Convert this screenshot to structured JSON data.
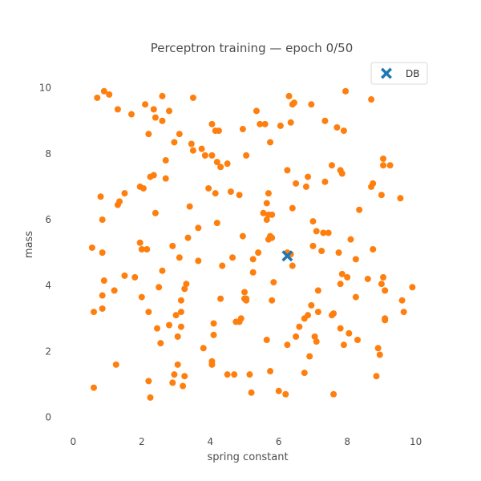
{
  "chart_data": {
    "type": "scatter",
    "title": "Perceptron training — epoch 0/50",
    "xlabel": "spring constant",
    "ylabel": "mass",
    "xlim": [
      -0.5,
      10.5
    ],
    "ylim": [
      -0.4,
      10.6
    ],
    "xticks": [
      0,
      2,
      4,
      6,
      8,
      10
    ],
    "yticks": [
      0,
      2,
      4,
      6,
      8,
      10
    ],
    "grid": false,
    "legend_position": "top-right",
    "series": [
      {
        "marker": "circle",
        "color": "#ff7f0e",
        "points": [
          [
            0.7,
            9.7
          ],
          [
            0.9,
            9.9
          ],
          [
            1.05,
            9.8
          ],
          [
            1.3,
            9.35
          ],
          [
            1.7,
            9.2
          ],
          [
            2.1,
            9.5
          ],
          [
            2.35,
            9.35
          ],
          [
            2.4,
            9.1
          ],
          [
            2.6,
            9.0
          ],
          [
            2.6,
            9.75
          ],
          [
            2.8,
            9.3
          ],
          [
            3.5,
            9.7
          ],
          [
            4.05,
            8.9
          ],
          [
            4.15,
            8.7
          ],
          [
            4.25,
            8.7
          ],
          [
            4.95,
            8.75
          ],
          [
            5.35,
            9.3
          ],
          [
            5.45,
            8.9
          ],
          [
            5.6,
            8.9
          ],
          [
            5.75,
            8.35
          ],
          [
            6.05,
            8.85
          ],
          [
            6.3,
            9.75
          ],
          [
            6.35,
            8.95
          ],
          [
            6.4,
            9.5
          ],
          [
            6.45,
            9.55
          ],
          [
            6.95,
            9.5
          ],
          [
            7.35,
            9.0
          ],
          [
            7.7,
            8.8
          ],
          [
            7.9,
            8.7
          ],
          [
            7.95,
            9.9
          ],
          [
            8.7,
            9.65
          ],
          [
            2.2,
            8.6
          ],
          [
            3.1,
            8.6
          ],
          [
            2.95,
            8.35
          ],
          [
            3.45,
            8.3
          ],
          [
            3.5,
            8.1
          ],
          [
            3.75,
            8.15
          ],
          [
            3.85,
            7.95
          ],
          [
            4.05,
            7.95
          ],
          [
            4.2,
            7.75
          ],
          [
            4.3,
            7.6
          ],
          [
            4.5,
            7.7
          ],
          [
            5.05,
            7.95
          ],
          [
            2.7,
            7.8
          ],
          [
            2.35,
            7.35
          ],
          [
            2.25,
            7.3
          ],
          [
            2.7,
            7.25
          ],
          [
            1.95,
            7.0
          ],
          [
            2.05,
            6.95
          ],
          [
            1.5,
            6.8
          ],
          [
            0.8,
            6.7
          ],
          [
            1.35,
            6.55
          ],
          [
            1.3,
            6.45
          ],
          [
            3.4,
            6.4
          ],
          [
            3.95,
            6.95
          ],
          [
            4.15,
            6.8
          ],
          [
            4.6,
            6.85
          ],
          [
            4.85,
            6.75
          ],
          [
            5.65,
            6.5
          ],
          [
            5.7,
            6.8
          ],
          [
            6.25,
            7.5
          ],
          [
            6.5,
            7.1
          ],
          [
            6.8,
            7.0
          ],
          [
            6.85,
            7.3
          ],
          [
            7.35,
            7.15
          ],
          [
            7.55,
            7.65
          ],
          [
            7.8,
            7.5
          ],
          [
            7.85,
            7.4
          ],
          [
            8.7,
            7.0
          ],
          [
            8.75,
            7.1
          ],
          [
            9.0,
            6.75
          ],
          [
            9.05,
            7.65
          ],
          [
            9.05,
            7.85
          ],
          [
            9.25,
            7.65
          ],
          [
            9.55,
            6.65
          ],
          [
            2.4,
            6.2
          ],
          [
            5.55,
            6.2
          ],
          [
            5.7,
            6.15
          ],
          [
            5.65,
            6.0
          ],
          [
            5.8,
            6.15
          ],
          [
            4.2,
            5.9
          ],
          [
            6.4,
            6.35
          ],
          [
            0.85,
            6.0
          ],
          [
            7.0,
            5.95
          ],
          [
            7.1,
            5.65
          ],
          [
            7.3,
            5.6
          ],
          [
            7.45,
            5.6
          ],
          [
            7.0,
            5.2
          ],
          [
            7.25,
            5.05
          ],
          [
            7.75,
            5.0
          ],
          [
            8.1,
            5.4
          ],
          [
            8.25,
            4.8
          ],
          [
            8.35,
            6.3
          ],
          [
            8.75,
            5.1
          ],
          [
            0.55,
            5.15
          ],
          [
            0.85,
            5.0
          ],
          [
            1.95,
            5.3
          ],
          [
            2.0,
            5.1
          ],
          [
            2.15,
            5.1
          ],
          [
            2.9,
            5.2
          ],
          [
            3.35,
            5.45
          ],
          [
            3.65,
            5.75
          ],
          [
            4.95,
            5.5
          ],
          [
            5.4,
            5.0
          ],
          [
            5.7,
            5.4
          ],
          [
            5.75,
            5.5
          ],
          [
            5.8,
            5.45
          ],
          [
            6.25,
            5.0
          ],
          [
            6.35,
            4.95
          ],
          [
            3.1,
            4.85
          ],
          [
            3.65,
            4.75
          ],
          [
            4.35,
            4.6
          ],
          [
            4.65,
            4.85
          ],
          [
            5.25,
            4.8
          ],
          [
            6.4,
            4.6
          ],
          [
            0.9,
            4.15
          ],
          [
            1.5,
            4.3
          ],
          [
            1.8,
            4.25
          ],
          [
            2.5,
            3.95
          ],
          [
            2.6,
            4.45
          ],
          [
            3.25,
            3.9
          ],
          [
            3.3,
            4.05
          ],
          [
            5.25,
            4.4
          ],
          [
            5.85,
            4.1
          ],
          [
            5.0,
            3.8
          ],
          [
            5.0,
            3.6
          ],
          [
            5.05,
            3.55
          ],
          [
            5.05,
            3.6
          ],
          [
            5.8,
            3.55
          ],
          [
            7.15,
            3.85
          ],
          [
            7.8,
            4.05
          ],
          [
            7.85,
            4.35
          ],
          [
            8.0,
            4.25
          ],
          [
            8.6,
            4.2
          ],
          [
            8.25,
            3.65
          ],
          [
            9.0,
            4.05
          ],
          [
            9.05,
            4.25
          ],
          [
            9.1,
            3.85
          ],
          [
            9.9,
            3.95
          ],
          [
            0.6,
            3.2
          ],
          [
            0.85,
            3.3
          ],
          [
            0.85,
            3.7
          ],
          [
            1.2,
            3.85
          ],
          [
            2.0,
            3.65
          ],
          [
            2.2,
            3.2
          ],
          [
            3.15,
            3.2
          ],
          [
            3.15,
            3.55
          ],
          [
            4.3,
            3.6
          ],
          [
            4.1,
            2.85
          ],
          [
            4.1,
            2.5
          ],
          [
            2.8,
            2.8
          ],
          [
            3.0,
            3.1
          ],
          [
            3.15,
            2.75
          ],
          [
            2.45,
            2.7
          ],
          [
            2.55,
            2.25
          ],
          [
            3.05,
            2.45
          ],
          [
            3.8,
            2.1
          ],
          [
            4.75,
            2.9
          ],
          [
            4.85,
            2.9
          ],
          [
            4.9,
            3.0
          ],
          [
            5.65,
            2.35
          ],
          [
            6.25,
            2.2
          ],
          [
            6.5,
            2.45
          ],
          [
            6.6,
            2.75
          ],
          [
            6.75,
            3.0
          ],
          [
            6.85,
            3.1
          ],
          [
            6.95,
            3.4
          ],
          [
            7.05,
            2.45
          ],
          [
            7.1,
            2.3
          ],
          [
            7.15,
            3.2
          ],
          [
            7.55,
            3.1
          ],
          [
            7.6,
            3.15
          ],
          [
            7.8,
            2.7
          ],
          [
            7.9,
            2.2
          ],
          [
            8.05,
            2.55
          ],
          [
            8.3,
            2.35
          ],
          [
            8.9,
            2.1
          ],
          [
            8.95,
            1.9
          ],
          [
            9.1,
            3.0
          ],
          [
            9.1,
            2.95
          ],
          [
            9.6,
            3.55
          ],
          [
            9.65,
            3.2
          ],
          [
            0.6,
            0.9
          ],
          [
            1.25,
            1.6
          ],
          [
            2.2,
            1.1
          ],
          [
            2.25,
            0.6
          ],
          [
            2.9,
            1.05
          ],
          [
            2.95,
            1.3
          ],
          [
            3.05,
            1.6
          ],
          [
            3.2,
            0.95
          ],
          [
            3.25,
            1.25
          ],
          [
            4.05,
            1.6
          ],
          [
            4.05,
            1.7
          ],
          [
            4.5,
            1.3
          ],
          [
            4.7,
            1.3
          ],
          [
            5.15,
            1.3
          ],
          [
            5.2,
            0.75
          ],
          [
            5.75,
            1.4
          ],
          [
            6.0,
            0.8
          ],
          [
            6.2,
            0.7
          ],
          [
            6.75,
            1.35
          ],
          [
            6.9,
            1.85
          ],
          [
            7.6,
            0.7
          ],
          [
            8.85,
            1.25
          ]
        ]
      },
      {
        "name": "DB",
        "marker": "x",
        "color": "#1f77b4",
        "points": [
          [
            6.25,
            4.9
          ]
        ]
      }
    ]
  }
}
